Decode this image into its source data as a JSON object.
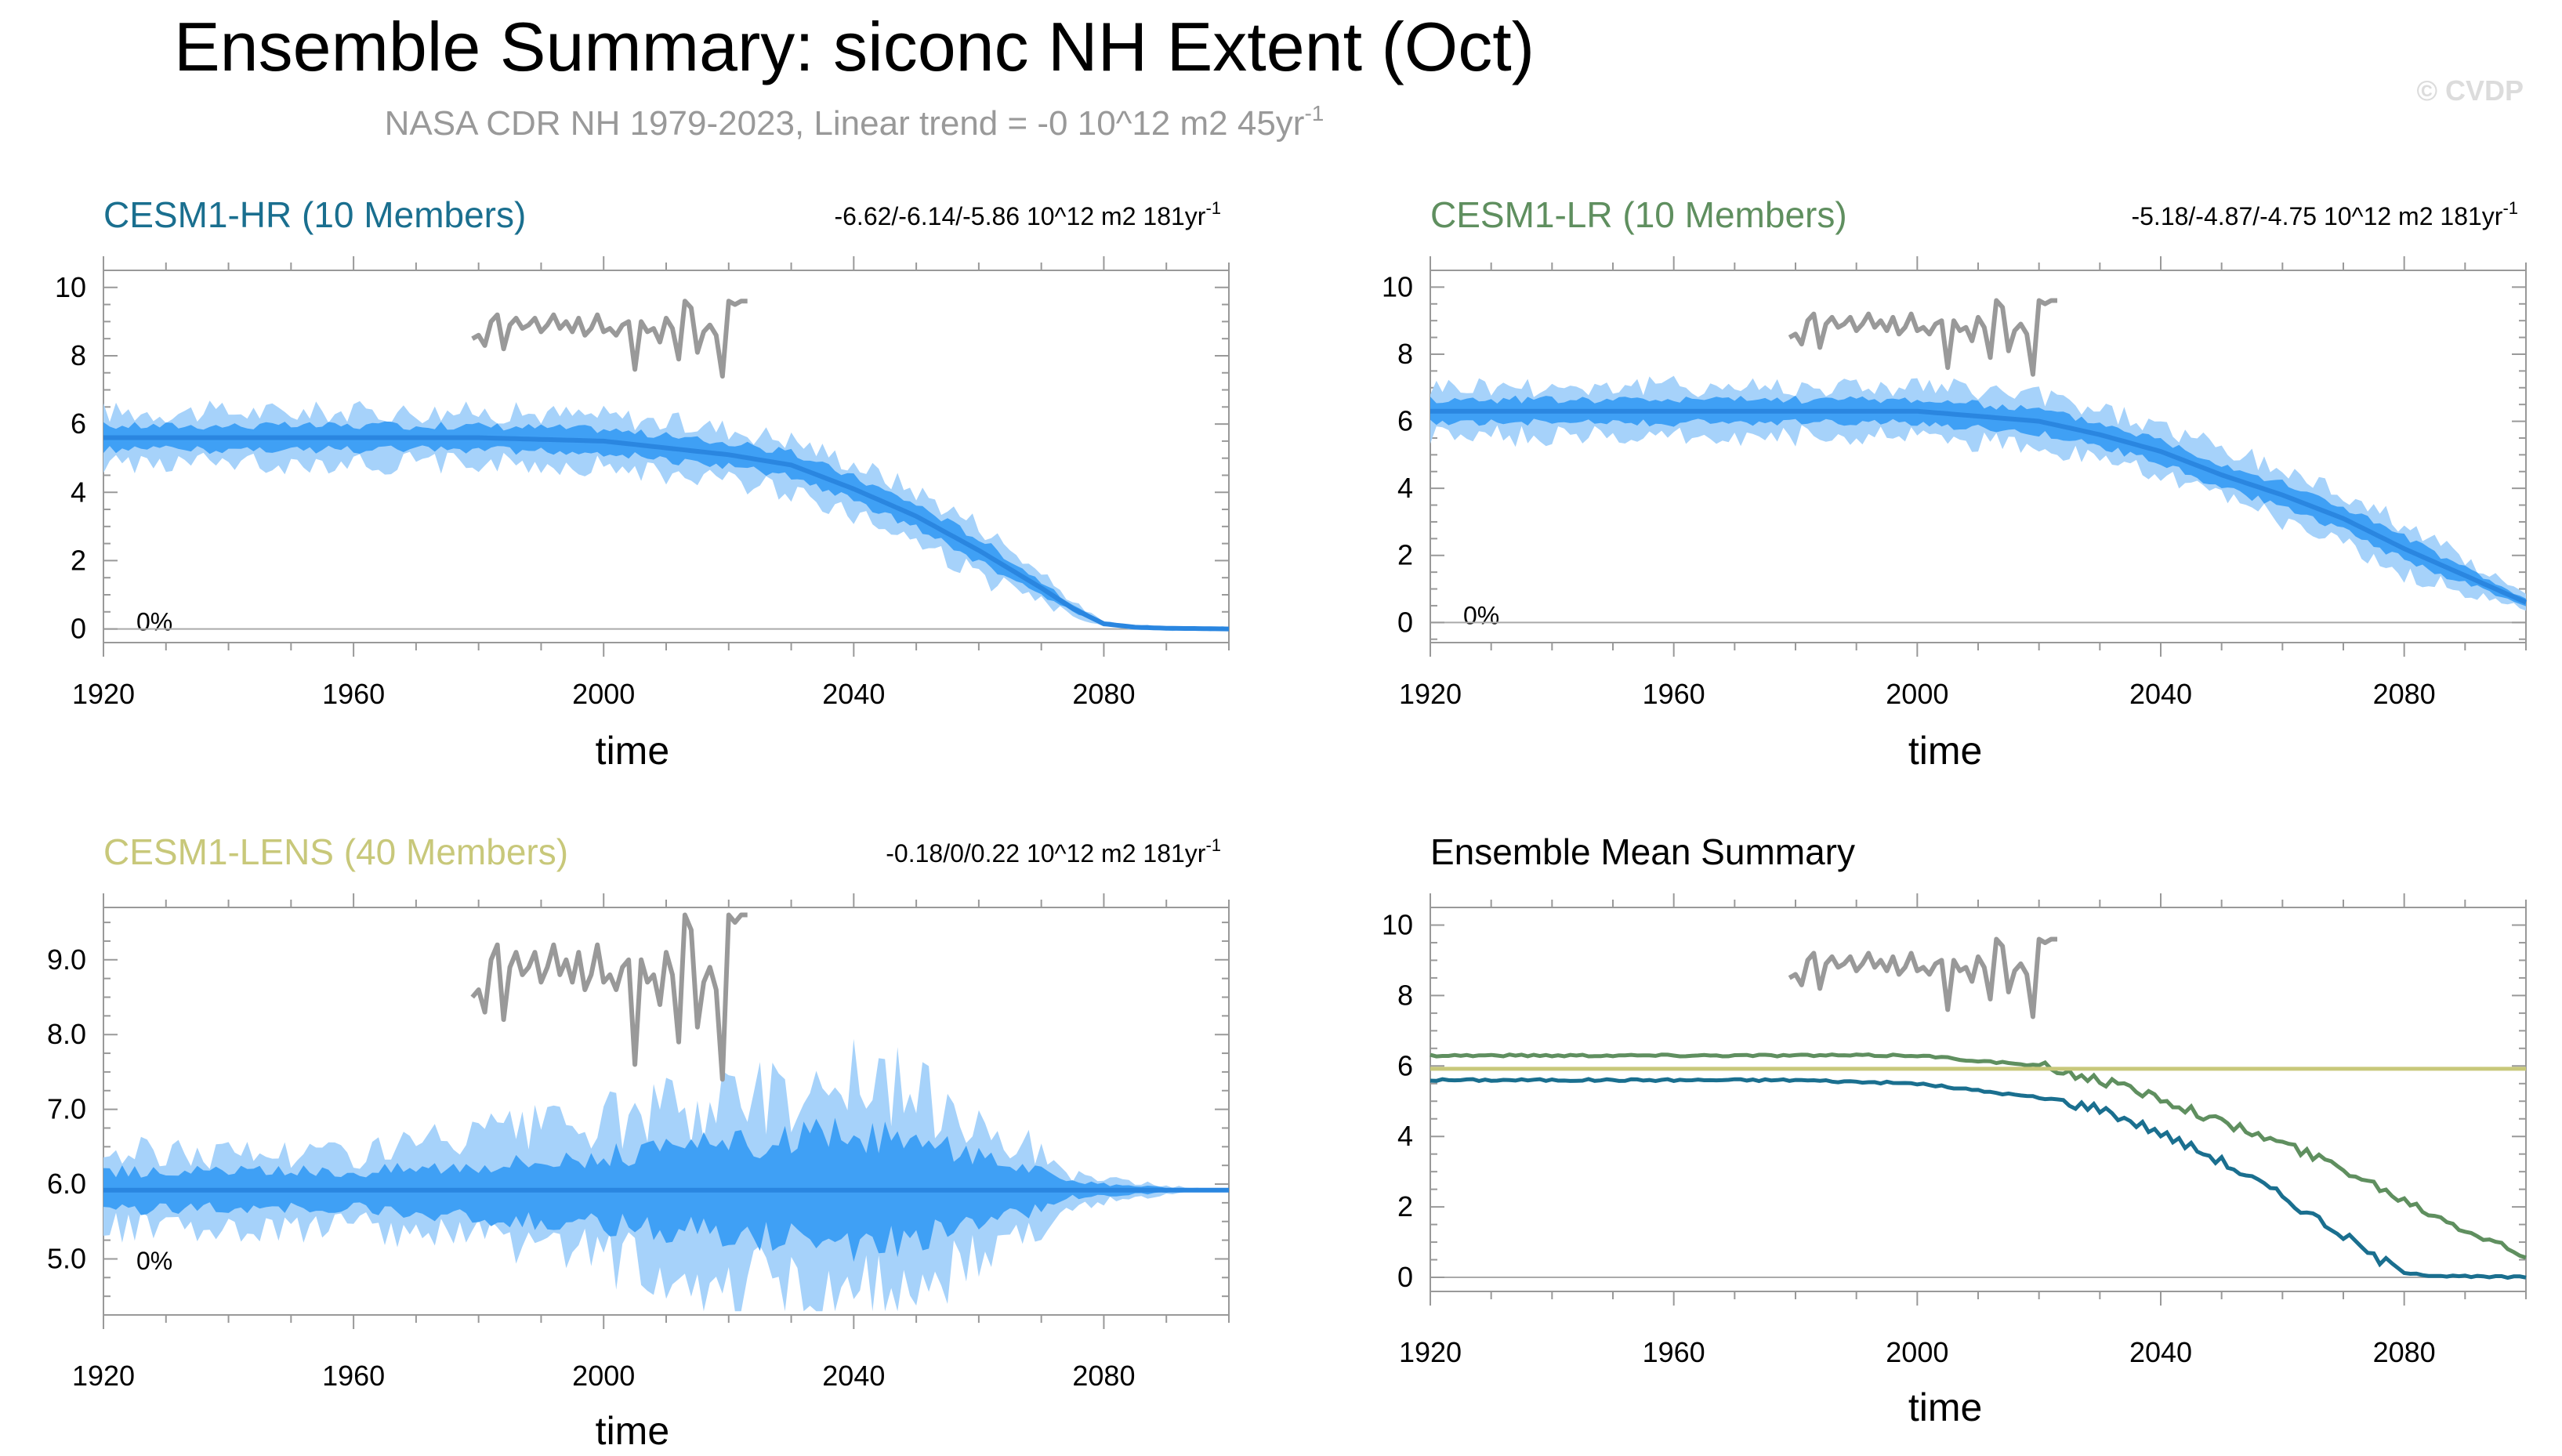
{
  "header": {
    "title": "Ensemble Summary: siconc NH Extent (Oct)",
    "subtitle": "NASA CDR NH 1979-2023, Linear trend = -0 10^12 m2 45yr",
    "subtitle_sup": "-1",
    "watermark": "© CVDP"
  },
  "colors": {
    "obs": "#999999",
    "band_outer": "#a6d2fa",
    "band_inner": "#3fa0f5",
    "mean_line": "#2a86e0",
    "hr": "#1a6f8f",
    "lr": "#5f8f5f",
    "lens": "#c8c87a"
  },
  "panels": [
    {
      "id": "hr",
      "title": "CESM1-HR (10 Members)",
      "title_color": "#1a6f8f",
      "stat": "-6.62/-6.14/-5.86 10^12 m2 181yr",
      "stat_sup": "-1",
      "pct": "0%",
      "xlabel": "time"
    },
    {
      "id": "lr",
      "title": "CESM1-LR (10 Members)",
      "title_color": "#5f8f5f",
      "stat": "-5.18/-4.87/-4.75 10^12 m2 181yr",
      "stat_sup": "-1",
      "pct": "0%",
      "xlabel": "time"
    },
    {
      "id": "lens",
      "title": "CESM1-LENS (40 Members)",
      "title_color": "#c8c87a",
      "stat": "-0.18/0/0.22 10^12 m2 181yr",
      "stat_sup": "-1",
      "pct": "0%",
      "xlabel": "time"
    },
    {
      "id": "summary",
      "title": "Ensemble Mean Summary",
      "title_color": "#000000",
      "stat": "",
      "stat_sup": "",
      "pct": "",
      "xlabel": "time"
    }
  ],
  "chart_data": [
    {
      "type": "area",
      "panel": "CESM1-HR (10 Members)",
      "xlabel": "time",
      "ylabel": "",
      "xlim": [
        1920,
        2100
      ],
      "ylim": [
        -0.4,
        10.5
      ],
      "xticks": [
        1920,
        1960,
        2000,
        2040,
        2080
      ],
      "xtick_labels": [
        "1920",
        "1960",
        "2000",
        "2040",
        "2080"
      ],
      "yticks": [
        0,
        2,
        4,
        6,
        8,
        10
      ],
      "ytick_labels": [
        "0",
        "2",
        "4",
        "6",
        "8",
        "10"
      ],
      "series_mean_keypoints": {
        "x": [
          1920,
          1980,
          2000,
          2010,
          2020,
          2030,
          2040,
          2050,
          2060,
          2070,
          2075,
          2080,
          2085,
          2090,
          2100
        ],
        "y": [
          5.6,
          5.6,
          5.5,
          5.3,
          5.1,
          4.8,
          4.1,
          3.3,
          2.3,
          1.2,
          0.6,
          0.15,
          0.05,
          0.02,
          0.0
        ]
      },
      "spread_inner_halfwidth": 0.35,
      "spread_outer_halfwidth": 0.75,
      "obs": {
        "x": [
          1979,
          1980,
          1981,
          1982,
          1983,
          1984,
          1985,
          1986,
          1987,
          1988,
          1989,
          1990,
          1991,
          1992,
          1993,
          1994,
          1995,
          1996,
          1997,
          1998,
          1999,
          2000,
          2001,
          2002,
          2003,
          2004,
          2005,
          2006,
          2007,
          2008,
          2009,
          2010,
          2011,
          2012,
          2013,
          2014,
          2015,
          2016,
          2017,
          2018,
          2019,
          2020,
          2021,
          2022,
          2023
        ],
        "y": [
          8.5,
          8.6,
          8.3,
          9.0,
          9.2,
          8.2,
          8.9,
          9.1,
          8.8,
          8.9,
          9.1,
          8.7,
          8.9,
          9.2,
          8.8,
          9.0,
          8.7,
          9.1,
          8.6,
          8.8,
          9.2,
          8.7,
          8.8,
          8.6,
          8.9,
          9.0,
          7.6,
          9.0,
          8.7,
          8.8,
          8.4,
          9.1,
          8.8,
          7.9,
          9.6,
          9.4,
          8.1,
          8.7,
          8.9,
          8.6,
          7.4,
          9.6,
          9.5,
          9.6,
          9.6
        ]
      }
    },
    {
      "type": "area",
      "panel": "CESM1-LR (10 Members)",
      "xlabel": "time",
      "ylabel": "",
      "xlim": [
        1920,
        2100
      ],
      "ylim": [
        -0.6,
        10.5
      ],
      "xticks": [
        1920,
        1960,
        2000,
        2040,
        2080
      ],
      "xtick_labels": [
        "1920",
        "1960",
        "2000",
        "2040",
        "2080"
      ],
      "yticks": [
        0,
        2,
        4,
        6,
        8,
        10
      ],
      "ytick_labels": [
        "0",
        "2",
        "4",
        "6",
        "8",
        "10"
      ],
      "series_mean_keypoints": {
        "x": [
          1920,
          1990,
          2000,
          2020,
          2030,
          2040,
          2050,
          2060,
          2070,
          2080,
          2090,
          2100
        ],
        "y": [
          6.3,
          6.3,
          6.3,
          6.0,
          5.6,
          5.1,
          4.4,
          3.8,
          3.1,
          2.2,
          1.4,
          0.6
        ]
      },
      "spread_inner_halfwidth": 0.35,
      "spread_outer_halfwidth": 0.75,
      "obs": {
        "x": [
          1979,
          1980,
          1981,
          1982,
          1983,
          1984,
          1985,
          1986,
          1987,
          1988,
          1989,
          1990,
          1991,
          1992,
          1993,
          1994,
          1995,
          1996,
          1997,
          1998,
          1999,
          2000,
          2001,
          2002,
          2003,
          2004,
          2005,
          2006,
          2007,
          2008,
          2009,
          2010,
          2011,
          2012,
          2013,
          2014,
          2015,
          2016,
          2017,
          2018,
          2019,
          2020,
          2021,
          2022,
          2023
        ],
        "y": [
          8.5,
          8.6,
          8.3,
          9.0,
          9.2,
          8.2,
          8.9,
          9.1,
          8.8,
          8.9,
          9.1,
          8.7,
          8.9,
          9.2,
          8.8,
          9.0,
          8.7,
          9.1,
          8.6,
          8.8,
          9.2,
          8.7,
          8.8,
          8.6,
          8.9,
          9.0,
          7.6,
          9.0,
          8.7,
          8.8,
          8.4,
          9.1,
          8.8,
          7.9,
          9.6,
          9.4,
          8.1,
          8.7,
          8.9,
          8.6,
          7.4,
          9.6,
          9.5,
          9.6,
          9.6
        ]
      }
    },
    {
      "type": "area",
      "panel": "CESM1-LENS (40 Members)",
      "xlabel": "time",
      "ylabel": "",
      "xlim": [
        1920,
        2100
      ],
      "ylim": [
        4.25,
        9.7
      ],
      "xticks": [
        1920,
        1960,
        2000,
        2040,
        2080
      ],
      "xtick_labels": [
        "1920",
        "1960",
        "2000",
        "2040",
        "2080"
      ],
      "yticks": [
        5.0,
        6.0,
        7.0,
        8.0,
        9.0
      ],
      "ytick_labels": [
        "5.0",
        "6.0",
        "7.0",
        "8.0",
        "9.0"
      ],
      "series_mean_keypoints": {
        "x": [
          1920,
          2100
        ],
        "y": [
          5.92,
          5.92
        ]
      },
      "spread_envelope": {
        "x": [
          1920,
          1960,
          2000,
          2040,
          2060,
          2075,
          2090,
          2100
        ],
        "outer": [
          0.5,
          0.5,
          0.9,
          1.5,
          1.0,
          0.2,
          0.05,
          0.0
        ],
        "inner": [
          0.25,
          0.25,
          0.45,
          0.75,
          0.5,
          0.1,
          0.03,
          0.0
        ]
      },
      "obs": {
        "x": [
          1979,
          1980,
          1981,
          1982,
          1983,
          1984,
          1985,
          1986,
          1987,
          1988,
          1989,
          1990,
          1991,
          1992,
          1993,
          1994,
          1995,
          1996,
          1997,
          1998,
          1999,
          2000,
          2001,
          2002,
          2003,
          2004,
          2005,
          2006,
          2007,
          2008,
          2009,
          2010,
          2011,
          2012,
          2013,
          2014,
          2015,
          2016,
          2017,
          2018,
          2019,
          2020,
          2021,
          2022,
          2023
        ],
        "y": [
          8.5,
          8.6,
          8.3,
          9.0,
          9.2,
          8.2,
          8.9,
          9.1,
          8.8,
          8.9,
          9.1,
          8.7,
          8.9,
          9.2,
          8.8,
          9.0,
          8.7,
          9.1,
          8.6,
          8.8,
          9.2,
          8.7,
          8.8,
          8.6,
          8.9,
          9.0,
          7.6,
          9.0,
          8.7,
          8.8,
          8.4,
          9.1,
          8.8,
          7.9,
          9.6,
          9.4,
          8.1,
          8.7,
          8.9,
          8.6,
          7.4,
          9.6,
          9.5,
          9.6,
          9.6
        ]
      }
    },
    {
      "type": "line",
      "panel": "Ensemble Mean Summary",
      "xlabel": "time",
      "ylabel": "",
      "xlim": [
        1920,
        2100
      ],
      "ylim": [
        -0.4,
        10.5
      ],
      "xticks": [
        1920,
        1960,
        2000,
        2040,
        2080
      ],
      "xtick_labels": [
        "1920",
        "1960",
        "2000",
        "2040",
        "2080"
      ],
      "yticks": [
        0,
        2,
        4,
        6,
        8,
        10
      ],
      "ytick_labels": [
        "0",
        "2",
        "4",
        "6",
        "8",
        "10"
      ],
      "series": [
        {
          "name": "CESM1-HR",
          "keypoints": {
            "x": [
              1920,
              1980,
              2000,
              2010,
              2020,
              2030,
              2040,
              2050,
              2060,
              2070,
              2075,
              2080,
              2085,
              2090,
              2100
            ],
            "y": [
              5.6,
              5.6,
              5.5,
              5.3,
              5.1,
              4.8,
              4.1,
              3.3,
              2.3,
              1.2,
              0.6,
              0.15,
              0.05,
              0.02,
              0.0
            ]
          }
        },
        {
          "name": "CESM1-LR",
          "keypoints": {
            "x": [
              1920,
              1990,
              2000,
              2020,
              2030,
              2040,
              2050,
              2060,
              2070,
              2080,
              2090,
              2100
            ],
            "y": [
              6.3,
              6.3,
              6.3,
              6.0,
              5.6,
              5.1,
              4.4,
              3.8,
              3.1,
              2.2,
              1.4,
              0.6
            ]
          }
        },
        {
          "name": "CESM1-LENS",
          "keypoints": {
            "x": [
              1920,
              2100
            ],
            "y": [
              5.92,
              5.92
            ]
          }
        }
      ],
      "obs": {
        "x": [
          1979,
          1980,
          1981,
          1982,
          1983,
          1984,
          1985,
          1986,
          1987,
          1988,
          1989,
          1990,
          1991,
          1992,
          1993,
          1994,
          1995,
          1996,
          1997,
          1998,
          1999,
          2000,
          2001,
          2002,
          2003,
          2004,
          2005,
          2006,
          2007,
          2008,
          2009,
          2010,
          2011,
          2012,
          2013,
          2014,
          2015,
          2016,
          2017,
          2018,
          2019,
          2020,
          2021,
          2022,
          2023
        ],
        "y": [
          8.5,
          8.6,
          8.3,
          9.0,
          9.2,
          8.2,
          8.9,
          9.1,
          8.8,
          8.9,
          9.1,
          8.7,
          8.9,
          9.2,
          8.8,
          9.0,
          8.7,
          9.1,
          8.6,
          8.8,
          9.2,
          8.7,
          8.8,
          8.6,
          8.9,
          9.0,
          7.6,
          9.0,
          8.7,
          8.8,
          8.4,
          9.1,
          8.8,
          7.9,
          9.6,
          9.4,
          8.1,
          8.7,
          8.9,
          8.6,
          7.4,
          9.6,
          9.5,
          9.6,
          9.6
        ]
      }
    }
  ]
}
